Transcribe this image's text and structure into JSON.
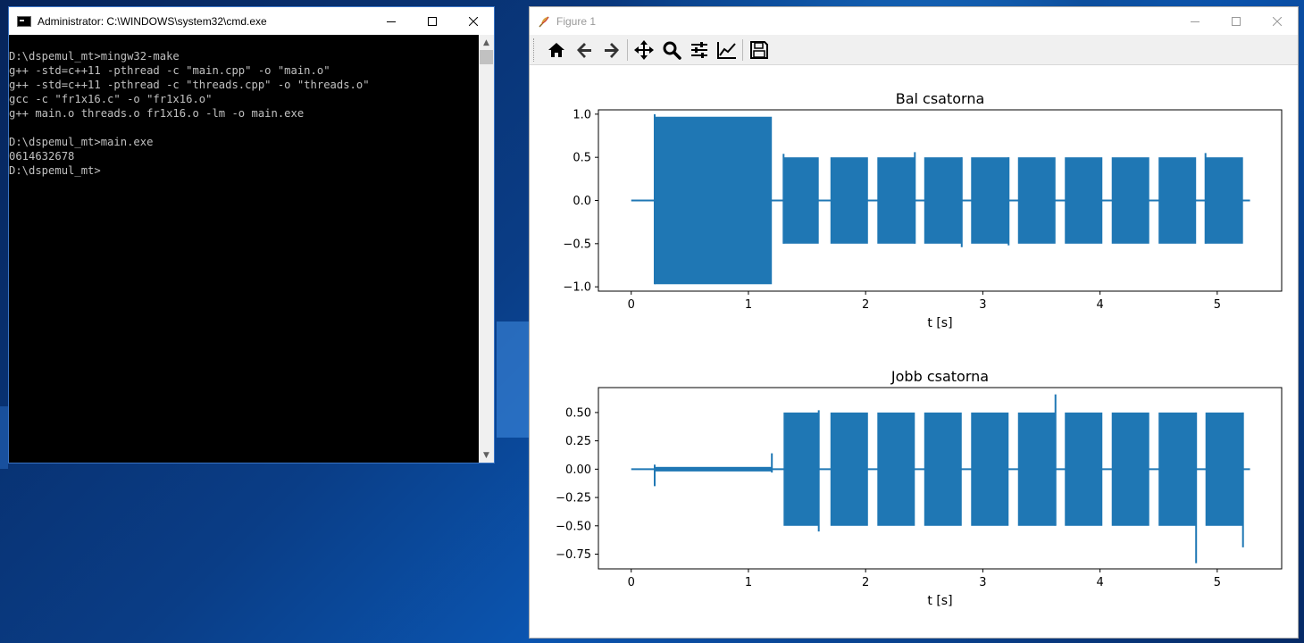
{
  "cmd_window": {
    "title": "Administrator: C:\\WINDOWS\\system32\\cmd.exe",
    "console_lines": [
      "D:\\dspemul_mt>mingw32-make",
      "g++ -std=c++11 -pthread -c \"main.cpp\" -o \"main.o\"",
      "g++ -std=c++11 -pthread -c \"threads.cpp\" -o \"threads.o\"",
      "gcc -c \"fr1x16.c\" -o \"fr1x16.o\"",
      "g++ main.o threads.o fr1x16.o -lm -o main.exe",
      "",
      "D:\\dspemul_mt>main.exe",
      "0614632678",
      "D:\\dspemul_mt>"
    ]
  },
  "figure_window": {
    "title": "Figure 1",
    "toolbar": [
      "home-icon",
      "back-icon",
      "forward-icon",
      "pan-icon",
      "zoom-icon",
      "subplots-icon",
      "edit-axes-icon",
      "save-icon"
    ]
  },
  "colors": {
    "series": "#1f77b4",
    "cmd_text": "#c0c0c0",
    "cmd_bg": "#000000"
  },
  "chart_data": [
    {
      "type": "line",
      "title": "Bal csatorna",
      "xlabel": "t [s]",
      "ylabel": "",
      "xlim": [
        -0.28,
        5.55
      ],
      "ylim": [
        -1.05,
        1.05
      ],
      "xticks": [
        0,
        1,
        2,
        3,
        4,
        5
      ],
      "yticks": [
        -1.0,
        -0.5,
        0.0,
        0.5,
        1.0
      ],
      "ytick_labels": [
        "−1.0",
        "−0.5",
        "0.0",
        "0.5",
        "1.0"
      ],
      "baseline": {
        "x_start": 0,
        "x_end": 5.28,
        "y": 0
      },
      "bursts": [
        {
          "t0": 0.2,
          "t1": 1.2,
          "lo": -0.97,
          "hi": 0.97
        },
        {
          "t0": 1.3,
          "t1": 1.6,
          "lo": -0.5,
          "hi": 0.5
        },
        {
          "t0": 1.7,
          "t1": 2.02,
          "lo": -0.5,
          "hi": 0.5
        },
        {
          "t0": 2.1,
          "t1": 2.42,
          "lo": -0.5,
          "hi": 0.5
        },
        {
          "t0": 2.5,
          "t1": 2.82,
          "lo": -0.5,
          "hi": 0.5
        },
        {
          "t0": 2.9,
          "t1": 3.22,
          "lo": -0.5,
          "hi": 0.5
        },
        {
          "t0": 3.3,
          "t1": 3.62,
          "lo": -0.5,
          "hi": 0.5
        },
        {
          "t0": 3.7,
          "t1": 4.02,
          "lo": -0.5,
          "hi": 0.5
        },
        {
          "t0": 4.1,
          "t1": 4.42,
          "lo": -0.5,
          "hi": 0.5
        },
        {
          "t0": 4.5,
          "t1": 4.82,
          "lo": -0.5,
          "hi": 0.5
        },
        {
          "t0": 4.9,
          "t1": 5.22,
          "lo": -0.5,
          "hi": 0.5
        }
      ],
      "spikes": [
        {
          "t": 0.2,
          "lo": -0.97,
          "hi": 1.0
        },
        {
          "t": 1.3,
          "lo": -0.5,
          "hi": 0.54
        },
        {
          "t": 2.42,
          "lo": -0.5,
          "hi": 0.56
        },
        {
          "t": 2.82,
          "lo": -0.54,
          "hi": 0.5
        },
        {
          "t": 3.22,
          "lo": -0.52,
          "hi": 0.5
        },
        {
          "t": 4.9,
          "lo": -0.5,
          "hi": 0.55
        }
      ]
    },
    {
      "type": "line",
      "title": "Jobb csatorna",
      "xlabel": "t [s]",
      "ylabel": "",
      "xlim": [
        -0.28,
        5.55
      ],
      "ylim": [
        -0.88,
        0.72
      ],
      "xticks": [
        0,
        1,
        2,
        3,
        4,
        5
      ],
      "yticks": [
        -0.75,
        -0.5,
        -0.25,
        0.0,
        0.25,
        0.5
      ],
      "ytick_labels": [
        "−0.75",
        "−0.50",
        "−0.25",
        "0.00",
        "0.25",
        "0.50"
      ],
      "baseline": {
        "x_start": 0,
        "x_end": 5.28,
        "y": 0
      },
      "bursts": [
        {
          "t0": 0.2,
          "t1": 1.2,
          "lo": -0.02,
          "hi": 0.02
        },
        {
          "t0": 1.3,
          "t1": 1.6,
          "lo": -0.5,
          "hi": 0.5
        },
        {
          "t0": 1.7,
          "t1": 2.02,
          "lo": -0.5,
          "hi": 0.5
        },
        {
          "t0": 2.1,
          "t1": 2.42,
          "lo": -0.5,
          "hi": 0.5
        },
        {
          "t0": 2.5,
          "t1": 2.82,
          "lo": -0.5,
          "hi": 0.5
        },
        {
          "t0": 2.9,
          "t1": 3.22,
          "lo": -0.5,
          "hi": 0.5
        },
        {
          "t0": 3.3,
          "t1": 3.62,
          "lo": -0.5,
          "hi": 0.5
        },
        {
          "t0": 3.7,
          "t1": 4.02,
          "lo": -0.5,
          "hi": 0.5
        },
        {
          "t0": 4.1,
          "t1": 4.42,
          "lo": -0.5,
          "hi": 0.5
        },
        {
          "t0": 4.5,
          "t1": 4.82,
          "lo": -0.5,
          "hi": 0.5
        },
        {
          "t0": 4.9,
          "t1": 5.22,
          "lo": -0.5,
          "hi": 0.5
        }
      ],
      "spikes": [
        {
          "t": 0.2,
          "lo": -0.15,
          "hi": 0.04
        },
        {
          "t": 1.2,
          "lo": -0.03,
          "hi": 0.14
        },
        {
          "t": 1.6,
          "lo": -0.55,
          "hi": 0.52
        },
        {
          "t": 3.62,
          "lo": -0.5,
          "hi": 0.66
        },
        {
          "t": 4.82,
          "lo": -0.83,
          "hi": 0.5
        },
        {
          "t": 5.22,
          "lo": -0.69,
          "hi": 0.5
        }
      ]
    }
  ]
}
